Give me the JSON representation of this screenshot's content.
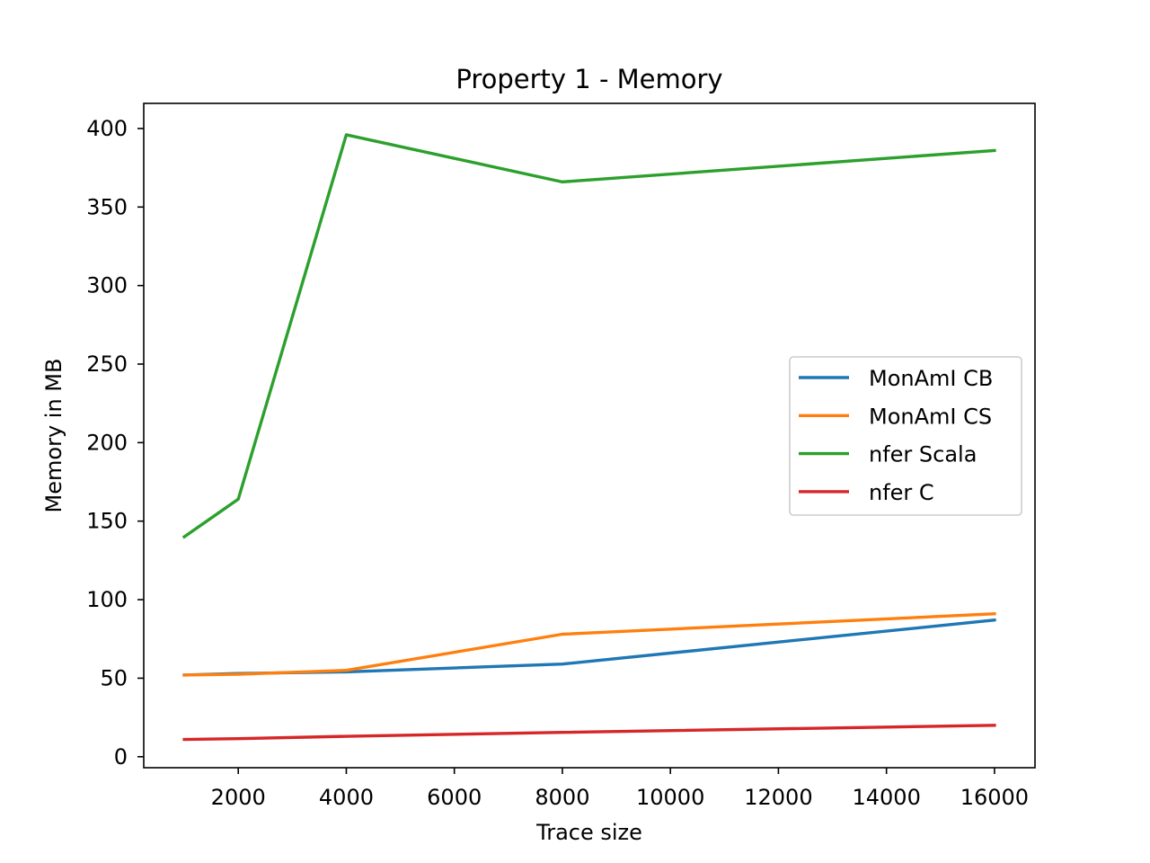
{
  "chart_data": {
    "type": "line",
    "title": "Property 1 - Memory",
    "xlabel": "Trace size",
    "ylabel": "Memory in MB",
    "xlim": [
      250,
      16750
    ],
    "ylim": [
      -7,
      416
    ],
    "xticks": [
      2000,
      4000,
      6000,
      8000,
      10000,
      12000,
      14000,
      16000
    ],
    "yticks": [
      0,
      50,
      100,
      150,
      200,
      250,
      300,
      350,
      400
    ],
    "grid": false,
    "legend_position": "center-right",
    "x": [
      1000,
      2000,
      4000,
      8000,
      16000
    ],
    "series": [
      {
        "name": "MonAmI CB",
        "color": "#1f77b4",
        "values": [
          52,
          53,
          54,
          59,
          87
        ]
      },
      {
        "name": "MonAmI CS",
        "color": "#ff7f0e",
        "values": [
          52,
          52.5,
          55,
          78,
          91
        ]
      },
      {
        "name": "nfer Scala",
        "color": "#2ca02c",
        "values": [
          140,
          164,
          396,
          366,
          386
        ]
      },
      {
        "name": "nfer C",
        "color": "#d62728",
        "values": [
          11,
          11.5,
          13,
          15.5,
          20
        ]
      }
    ]
  }
}
